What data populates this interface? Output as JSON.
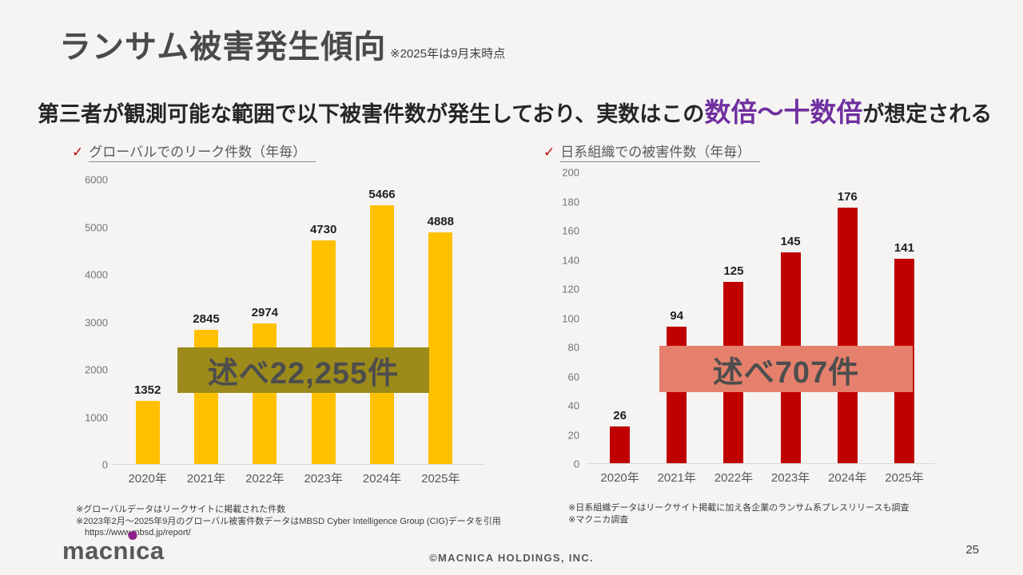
{
  "slide": {
    "background": "#F5F4F2",
    "title": "ランサム被害発生傾向",
    "title_note": "※2025年は9月末時点",
    "subtitle": {
      "pre": "第三者が観測可能な範囲で以下被害件数が発生しており、実数はこの",
      "highlight": "数倍～十数倍",
      "post": "が想定される",
      "highlight_color": "#7030A0"
    },
    "check_glyph": "✓",
    "check_color": "#C00000",
    "footer": {
      "logo_left": "macn",
      "logo_i": "ı",
      "logo_right": "ca",
      "logo_dot_color": "#8E1E8B",
      "copyright": "©MACNICA HOLDINGS, INC.",
      "page_number": "25"
    }
  },
  "chart_data": [
    {
      "type": "bar",
      "title": "グローバルでのリーク件数（年毎）",
      "categories": [
        "2020年",
        "2021年",
        "2022年",
        "2023年",
        "2024年",
        "2025年"
      ],
      "values": [
        1352,
        2845,
        2974,
        4730,
        5466,
        4888
      ],
      "ylim": [
        0,
        6000
      ],
      "ytick_step": 1000,
      "grid": false,
      "legend": false,
      "bar_color": "#FFC000",
      "overlay": {
        "label": "述べ22,255件",
        "color": "#9C8A1B"
      },
      "footnotes": [
        "※グローバルデータはリークサイトに掲載された件数",
        "※2023年2月～2025年9月のグローバル被害件数データはMBSD Cyber Intelligence Group (CIG)データを引用",
        "　https://www.mbsd.jp/report/"
      ]
    },
    {
      "type": "bar",
      "title": "日系組織での被害件数（年毎）",
      "categories": [
        "2020年",
        "2021年",
        "2022年",
        "2023年",
        "2024年",
        "2025年"
      ],
      "values": [
        26,
        94,
        125,
        145,
        176,
        141
      ],
      "ylim": [
        0,
        200
      ],
      "ytick_step": 20,
      "grid": false,
      "legend": false,
      "bar_color": "#C00000",
      "overlay": {
        "label": "述べ707件",
        "color": "#E5806C"
      },
      "footnotes": [
        "※日系組織データはリークサイト掲載に加え各企業のランサム系プレスリリースも調査",
        "※マクニカ調査"
      ]
    }
  ]
}
